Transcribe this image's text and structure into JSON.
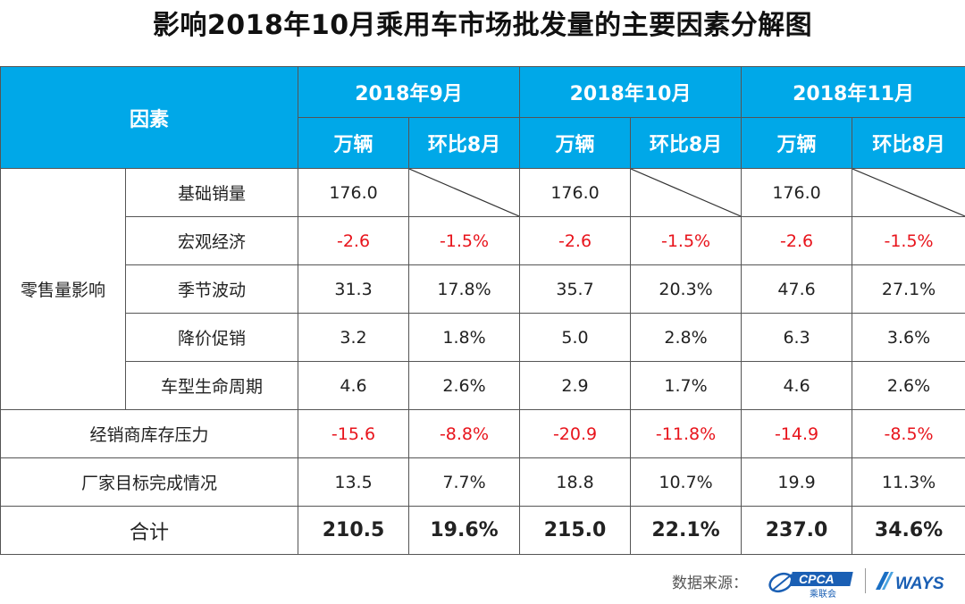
{
  "title": "影响2018年10月乘用车市场批发量的主要因素分解图",
  "header": {
    "factor_label": "因素",
    "periods": [
      "2018年9月",
      "2018年10月",
      "2018年11月"
    ],
    "col_volume": "万辆",
    "col_mom": "环比8月"
  },
  "groups": {
    "retail": "零售量影响"
  },
  "rows": [
    {
      "name": "基础销量",
      "values": [
        "176.0",
        "",
        "176.0",
        "",
        "176.0",
        ""
      ]
    },
    {
      "name": "宏观经济",
      "values": [
        "-2.6",
        "-1.5%",
        "-2.6",
        "-1.5%",
        "-2.6",
        "-1.5%"
      ]
    },
    {
      "name": "季节波动",
      "values": [
        "31.3",
        "17.8%",
        "35.7",
        "20.3%",
        "47.6",
        "27.1%"
      ]
    },
    {
      "name": "降价促销",
      "values": [
        "3.2",
        "1.8%",
        "5.0",
        "2.8%",
        "6.3",
        "3.6%"
      ]
    },
    {
      "name": "车型生命周期",
      "values": [
        "4.6",
        "2.6%",
        "2.9",
        "1.7%",
        "4.6",
        "2.6%"
      ]
    },
    {
      "name": "经销商库存压力",
      "values": [
        "-15.6",
        "-8.8%",
        "-20.9",
        "-11.8%",
        "-14.9",
        "-8.5%"
      ]
    },
    {
      "name": "厂家目标完成情况",
      "values": [
        "13.5",
        "7.7%",
        "18.8",
        "10.7%",
        "19.9",
        "11.3%"
      ]
    }
  ],
  "total": {
    "name": "合计",
    "values": [
      "210.5",
      "19.6%",
      "215.0",
      "22.1%",
      "237.0",
      "34.6%"
    ]
  },
  "footer": {
    "source_label": "数据来源：",
    "cpca_text": "CPCA",
    "cpca_sub": "乘联会",
    "ways_text": "WAYS"
  },
  "colors": {
    "header_bg": "#00a8e8",
    "negative": "#e8141c",
    "cpca_blue": "#1a5fb4"
  }
}
